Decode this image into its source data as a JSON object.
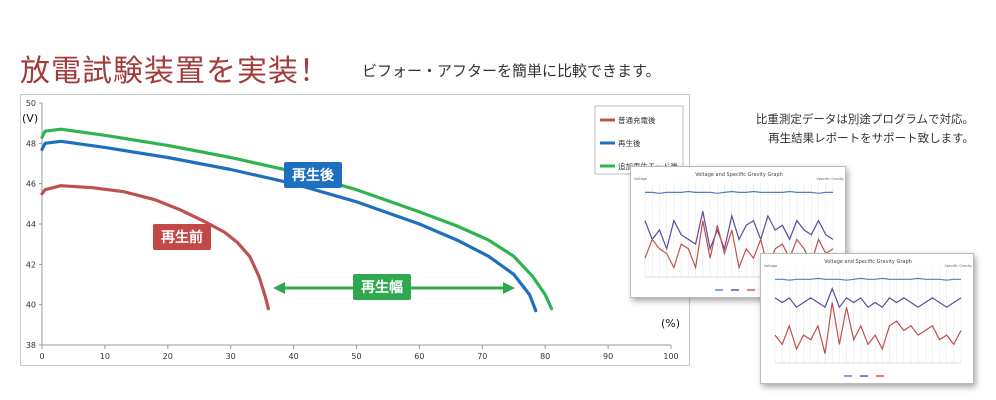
{
  "header": {
    "title": "放電試験装置を実装！",
    "subtitle": "ビフォー・アフターを簡単に比較できます。"
  },
  "note": {
    "line1": "比重測定データは別途プログラムで対応。",
    "line2": "再生結果レポートをサポート致します。"
  },
  "labels": {
    "after": "再生後",
    "before": "再生前",
    "range": "再生幅"
  },
  "colors": {
    "before": "#c0504d",
    "after": "#1f6fbf",
    "additional": "#2fb34f",
    "arrow": "#2fa84f"
  },
  "chart_data": [
    {
      "type": "line",
      "ylabel": "(V)",
      "xlabel": "(%)",
      "xlim": [
        0,
        100
      ],
      "ylim": [
        38,
        50
      ],
      "x_ticks": [
        0,
        10,
        20,
        30,
        40,
        50,
        60,
        70,
        80,
        90,
        100
      ],
      "y_ticks": [
        38,
        40,
        42,
        44,
        46,
        48,
        50
      ],
      "legend_position": "top-right",
      "series": [
        {
          "name": "普通充電後",
          "points": [
            [
              0,
              45.5
            ],
            [
              0.5,
              45.7
            ],
            [
              3,
              45.9
            ],
            [
              8,
              45.8
            ],
            [
              13,
              45.6
            ],
            [
              18,
              45.2
            ],
            [
              22,
              44.7
            ],
            [
              26,
              44.1
            ],
            [
              29,
              43.6
            ],
            [
              31,
              43.1
            ],
            [
              33,
              42.4
            ],
            [
              34.5,
              41.4
            ],
            [
              35.5,
              40.4
            ],
            [
              36,
              39.8
            ]
          ]
        },
        {
          "name": "再生後",
          "points": [
            [
              0,
              47.7
            ],
            [
              0.5,
              48.0
            ],
            [
              3,
              48.1
            ],
            [
              10,
              47.8
            ],
            [
              20,
              47.3
            ],
            [
              30,
              46.7
            ],
            [
              40,
              46.0
            ],
            [
              50,
              45.1
            ],
            [
              60,
              44.0
            ],
            [
              66,
              43.2
            ],
            [
              71,
              42.4
            ],
            [
              75,
              41.5
            ],
            [
              77.5,
              40.5
            ],
            [
              78.5,
              39.7
            ]
          ]
        },
        {
          "name": "追加再生モード後",
          "points": [
            [
              0,
              48.3
            ],
            [
              0.5,
              48.6
            ],
            [
              3,
              48.7
            ],
            [
              10,
              48.4
            ],
            [
              20,
              47.9
            ],
            [
              30,
              47.3
            ],
            [
              40,
              46.6
            ],
            [
              50,
              45.7
            ],
            [
              60,
              44.6
            ],
            [
              66,
              43.9
            ],
            [
              71,
              43.2
            ],
            [
              75,
              42.4
            ],
            [
              78,
              41.4
            ],
            [
              80,
              40.5
            ],
            [
              81,
              39.8
            ]
          ]
        }
      ]
    },
    {
      "type": "line",
      "title": "Voltage and Specific Gravity Graph",
      "ylabel": "Voltage",
      "y2label": "Specific Gravity",
      "series": [
        {
          "values": [
            12.8,
            12.8,
            12.79,
            12.8,
            12.8,
            12.8,
            12.81,
            12.8,
            12.8,
            12.8,
            12.79,
            12.8,
            12.81,
            12.8,
            12.8,
            12.81,
            12.8,
            12.8,
            12.8,
            12.8,
            12.81,
            12.8,
            12.8,
            12.8,
            12.79,
            12.8,
            12.8
          ]
        },
        {
          "values": [
            12.5,
            12.3,
            12.4,
            12.2,
            12.5,
            12.35,
            12.3,
            12.25,
            12.6,
            12.2,
            12.4,
            12.2,
            12.55,
            12.3,
            12.45,
            12.5,
            12.3,
            12.55,
            12.4,
            12.45,
            12.3,
            12.5,
            12.4,
            12.35,
            12.5,
            12.35,
            12.3
          ]
        },
        {
          "values": [
            12.1,
            12.3,
            12.2,
            12.15,
            12.0,
            12.25,
            12.2,
            12.0,
            12.5,
            12.1,
            12.45,
            12.15,
            12.4,
            12.0,
            12.2,
            12.1,
            12.3,
            12.0,
            12.2,
            12.25,
            12.1,
            12.3,
            12.2,
            12.05,
            12.3,
            12.15,
            12.2
          ]
        }
      ]
    },
    {
      "type": "line",
      "title": "Voltage and Specific Gravity Graph",
      "ylabel": "Voltage",
      "y2label": "Specific Gravity",
      "series": [
        {
          "values": [
            12.8,
            12.8,
            12.79,
            12.8,
            12.8,
            12.8,
            12.81,
            12.8,
            12.8,
            12.8,
            12.79,
            12.8,
            12.81,
            12.8,
            12.8,
            12.81,
            12.8,
            12.8,
            12.8,
            12.8,
            12.81,
            12.8,
            12.8,
            12.8,
            12.79,
            12.8,
            12.8
          ]
        },
        {
          "values": [
            12.6,
            12.55,
            12.6,
            12.5,
            12.55,
            12.6,
            12.55,
            12.5,
            12.7,
            12.5,
            12.6,
            12.55,
            12.6,
            12.5,
            12.55,
            12.5,
            12.6,
            12.55,
            12.6,
            12.55,
            12.5,
            12.55,
            12.6,
            12.55,
            12.5,
            12.55,
            12.6
          ]
        },
        {
          "values": [
            12.2,
            12.1,
            12.3,
            12.05,
            12.2,
            12.15,
            12.3,
            12.0,
            12.55,
            12.1,
            12.5,
            12.15,
            12.3,
            12.1,
            12.2,
            12.05,
            12.3,
            12.35,
            12.25,
            12.3,
            12.2,
            12.25,
            12.3,
            12.15,
            12.2,
            12.1,
            12.25
          ]
        }
      ]
    }
  ]
}
